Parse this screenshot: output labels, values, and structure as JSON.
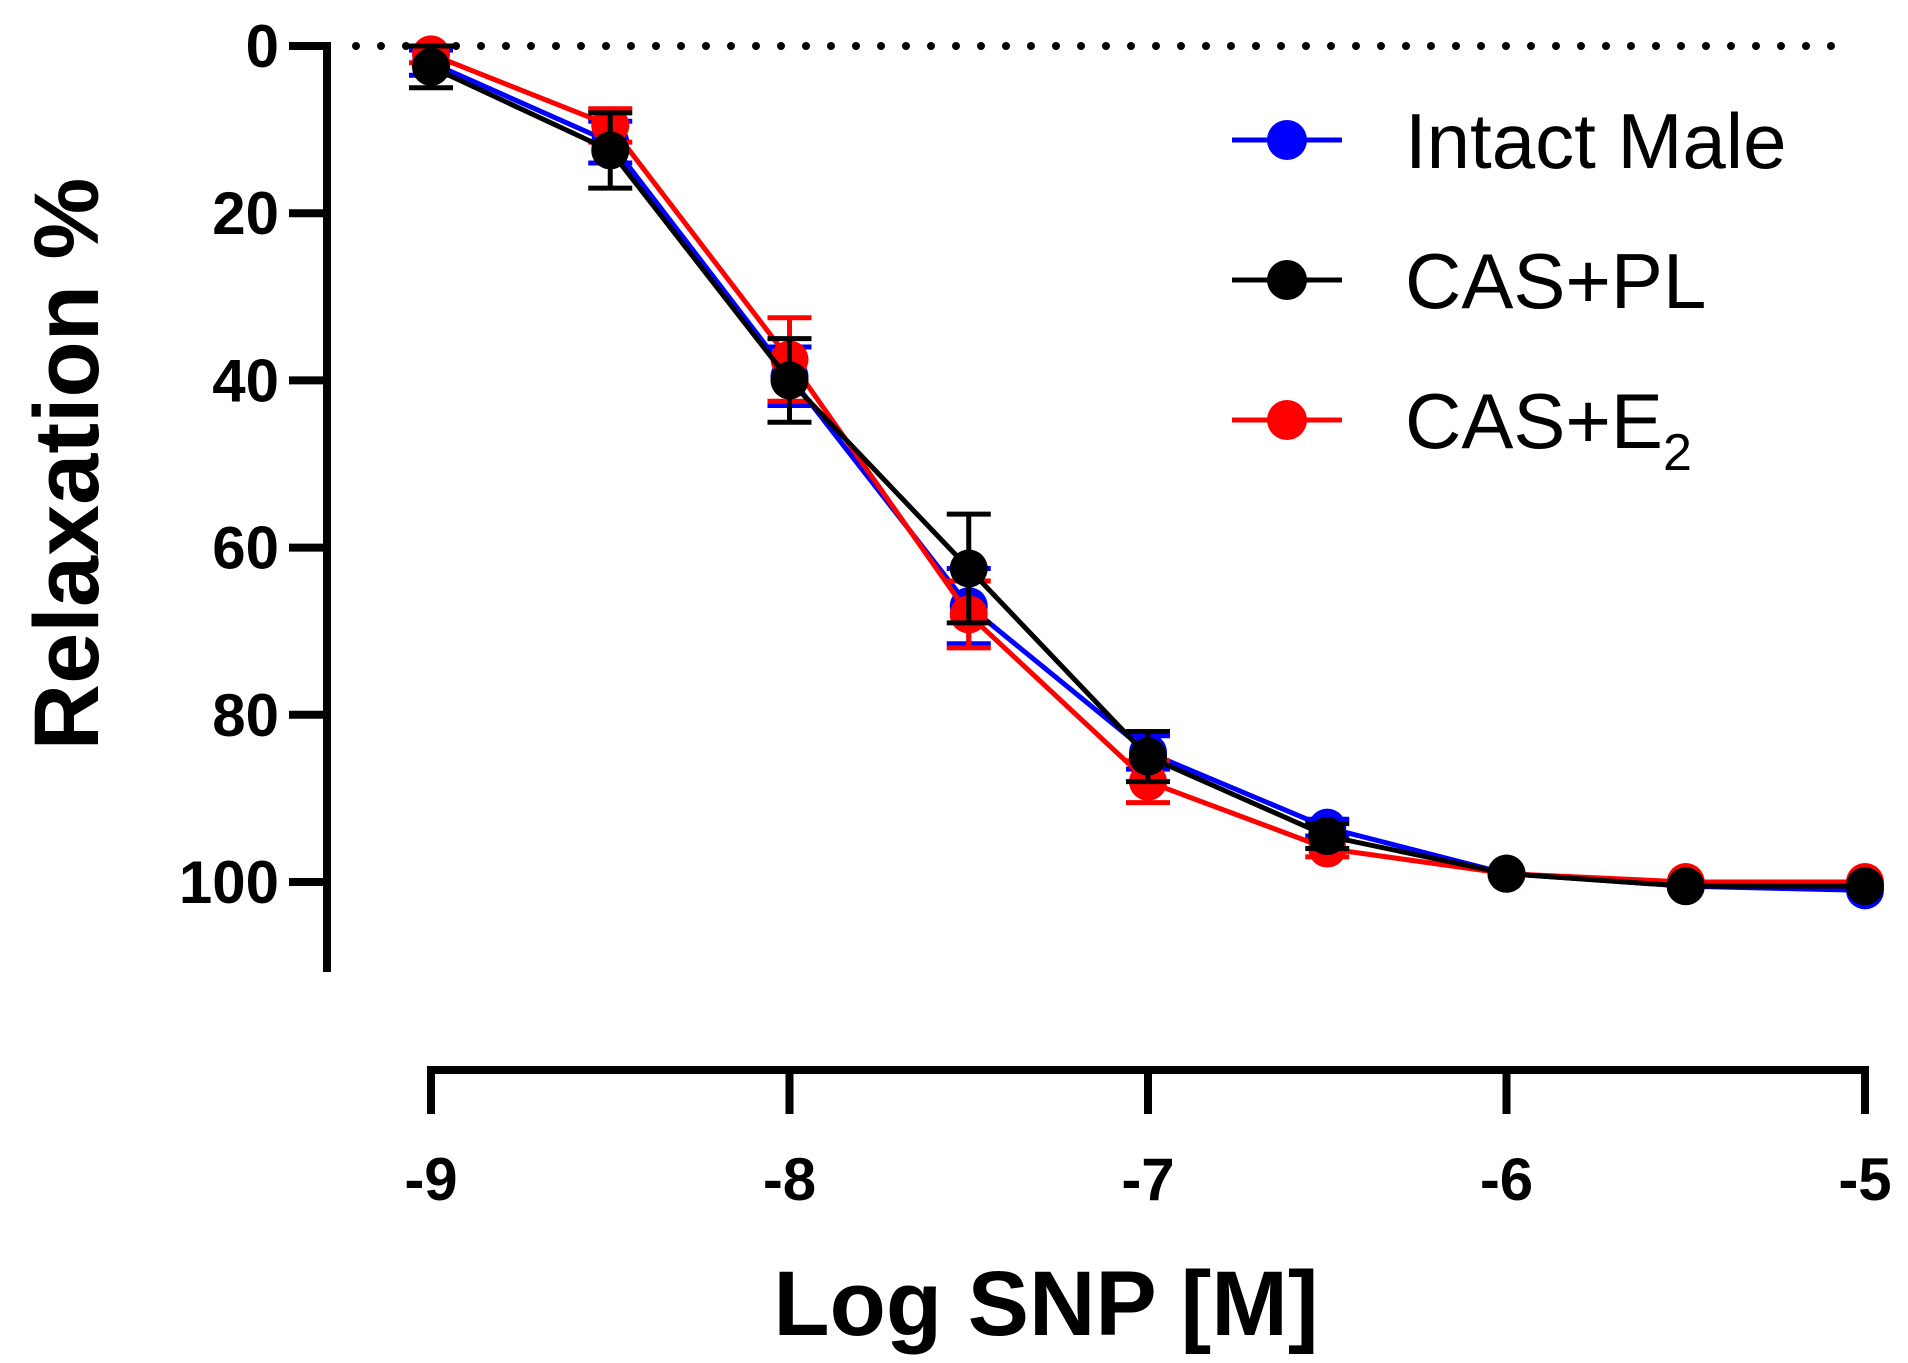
{
  "chart_data": {
    "type": "line",
    "title": "",
    "xlabel": "Log SNP [M]",
    "ylabel": "Relaxation %",
    "xlim": [
      -9,
      -5
    ],
    "ylim": [
      0,
      110
    ],
    "y_inverted": true,
    "x_ticks": [
      -9,
      -8,
      -7,
      -6,
      -5
    ],
    "x_tick_labels": [
      "-9",
      "-8",
      "-7",
      "-6",
      "-5"
    ],
    "y_ticks": [
      0,
      20,
      40,
      60,
      80,
      100
    ],
    "y_tick_labels": [
      "0",
      "20",
      "40",
      "60",
      "80",
      "100"
    ],
    "reference_line": {
      "y": 0,
      "style": "dotted"
    },
    "legend_position": "top-right",
    "x": [
      -9,
      -8.5,
      -8,
      -7.5,
      -7,
      -6.5,
      -6,
      -5.5,
      -5
    ],
    "series": [
      {
        "name": "Intact Male",
        "color": "#0000ff",
        "values": [
          2.0,
          11.5,
          39.5,
          67.0,
          84.5,
          93.5,
          99.0,
          100.5,
          101.0
        ],
        "errors": [
          1.5,
          2.5,
          3.5,
          4.5,
          2.0,
          1.0,
          0.5,
          0.5,
          0.5
        ]
      },
      {
        "name": "CAS+PL",
        "color": "#000000",
        "values": [
          2.5,
          12.5,
          40.0,
          62.5,
          85.0,
          94.5,
          99.0,
          100.5,
          100.5
        ],
        "errors": [
          2.5,
          4.5,
          5.0,
          6.5,
          3.0,
          1.5,
          0.5,
          0.5,
          0.5
        ]
      },
      {
        "name": "CAS+E",
        "name_subscript": "2",
        "color": "#ff0000",
        "values": [
          1.0,
          9.5,
          37.5,
          68.0,
          88.0,
          96.0,
          99.0,
          100.0,
          100.0
        ],
        "errors": [
          1.0,
          2.0,
          5.0,
          4.0,
          2.5,
          1.0,
          0.5,
          0.5,
          0.5
        ]
      }
    ]
  }
}
